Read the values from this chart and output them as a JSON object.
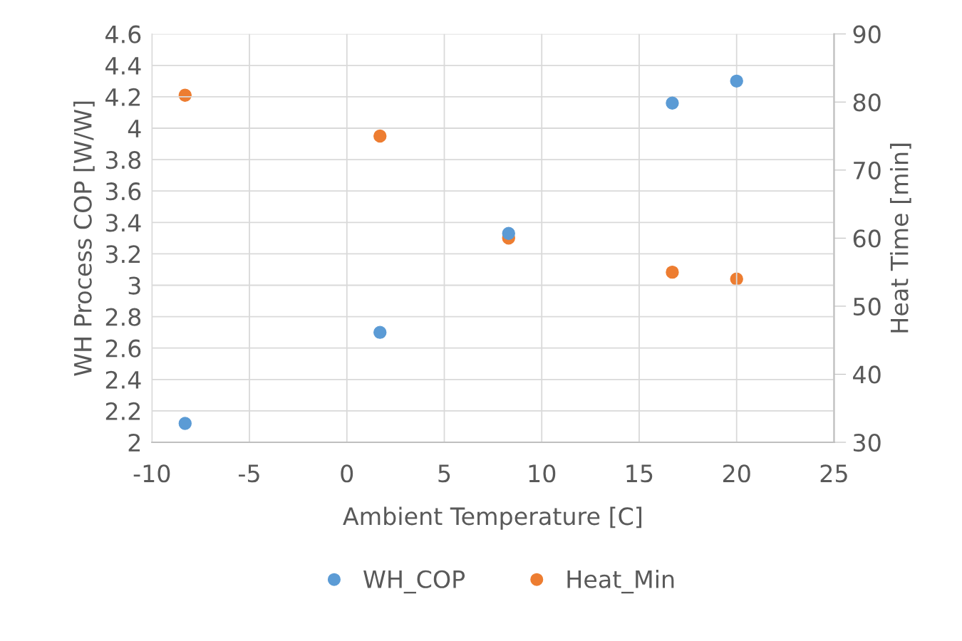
{
  "chart_data": {
    "type": "scatter",
    "xlabel": "Ambient Temperature [C]",
    "ylabel": "WH Process COP [W/W]",
    "y2label": "Heat Time [min]",
    "x": [
      -8.3,
      1.7,
      8.3,
      16.7,
      20
    ],
    "series": [
      {
        "name": "WH_COP",
        "color": "#5b9bd5",
        "values": [
          2.12,
          2.7,
          3.33,
          4.16,
          4.3
        ]
      },
      {
        "name": "Heat_Min",
        "color": "#ed7d31",
        "values": [
          81,
          75,
          60,
          55,
          54
        ],
        "axis": "y2"
      }
    ],
    "xlim": [
      -10,
      25
    ],
    "xticks": [
      -10,
      -5,
      0,
      5,
      10,
      15,
      20,
      25
    ],
    "ylim": [
      2,
      4.6
    ],
    "yticks": [
      2,
      2.2,
      2.4,
      2.6,
      2.8,
      3,
      3.2,
      3.4,
      3.6,
      3.8,
      4,
      4.2,
      4.4,
      4.6
    ],
    "y2lim": [
      30,
      90
    ],
    "y2ticks": [
      30,
      40,
      50,
      60,
      70,
      80,
      90
    ],
    "grid": true,
    "legend": "bottom",
    "marker": "circle"
  }
}
